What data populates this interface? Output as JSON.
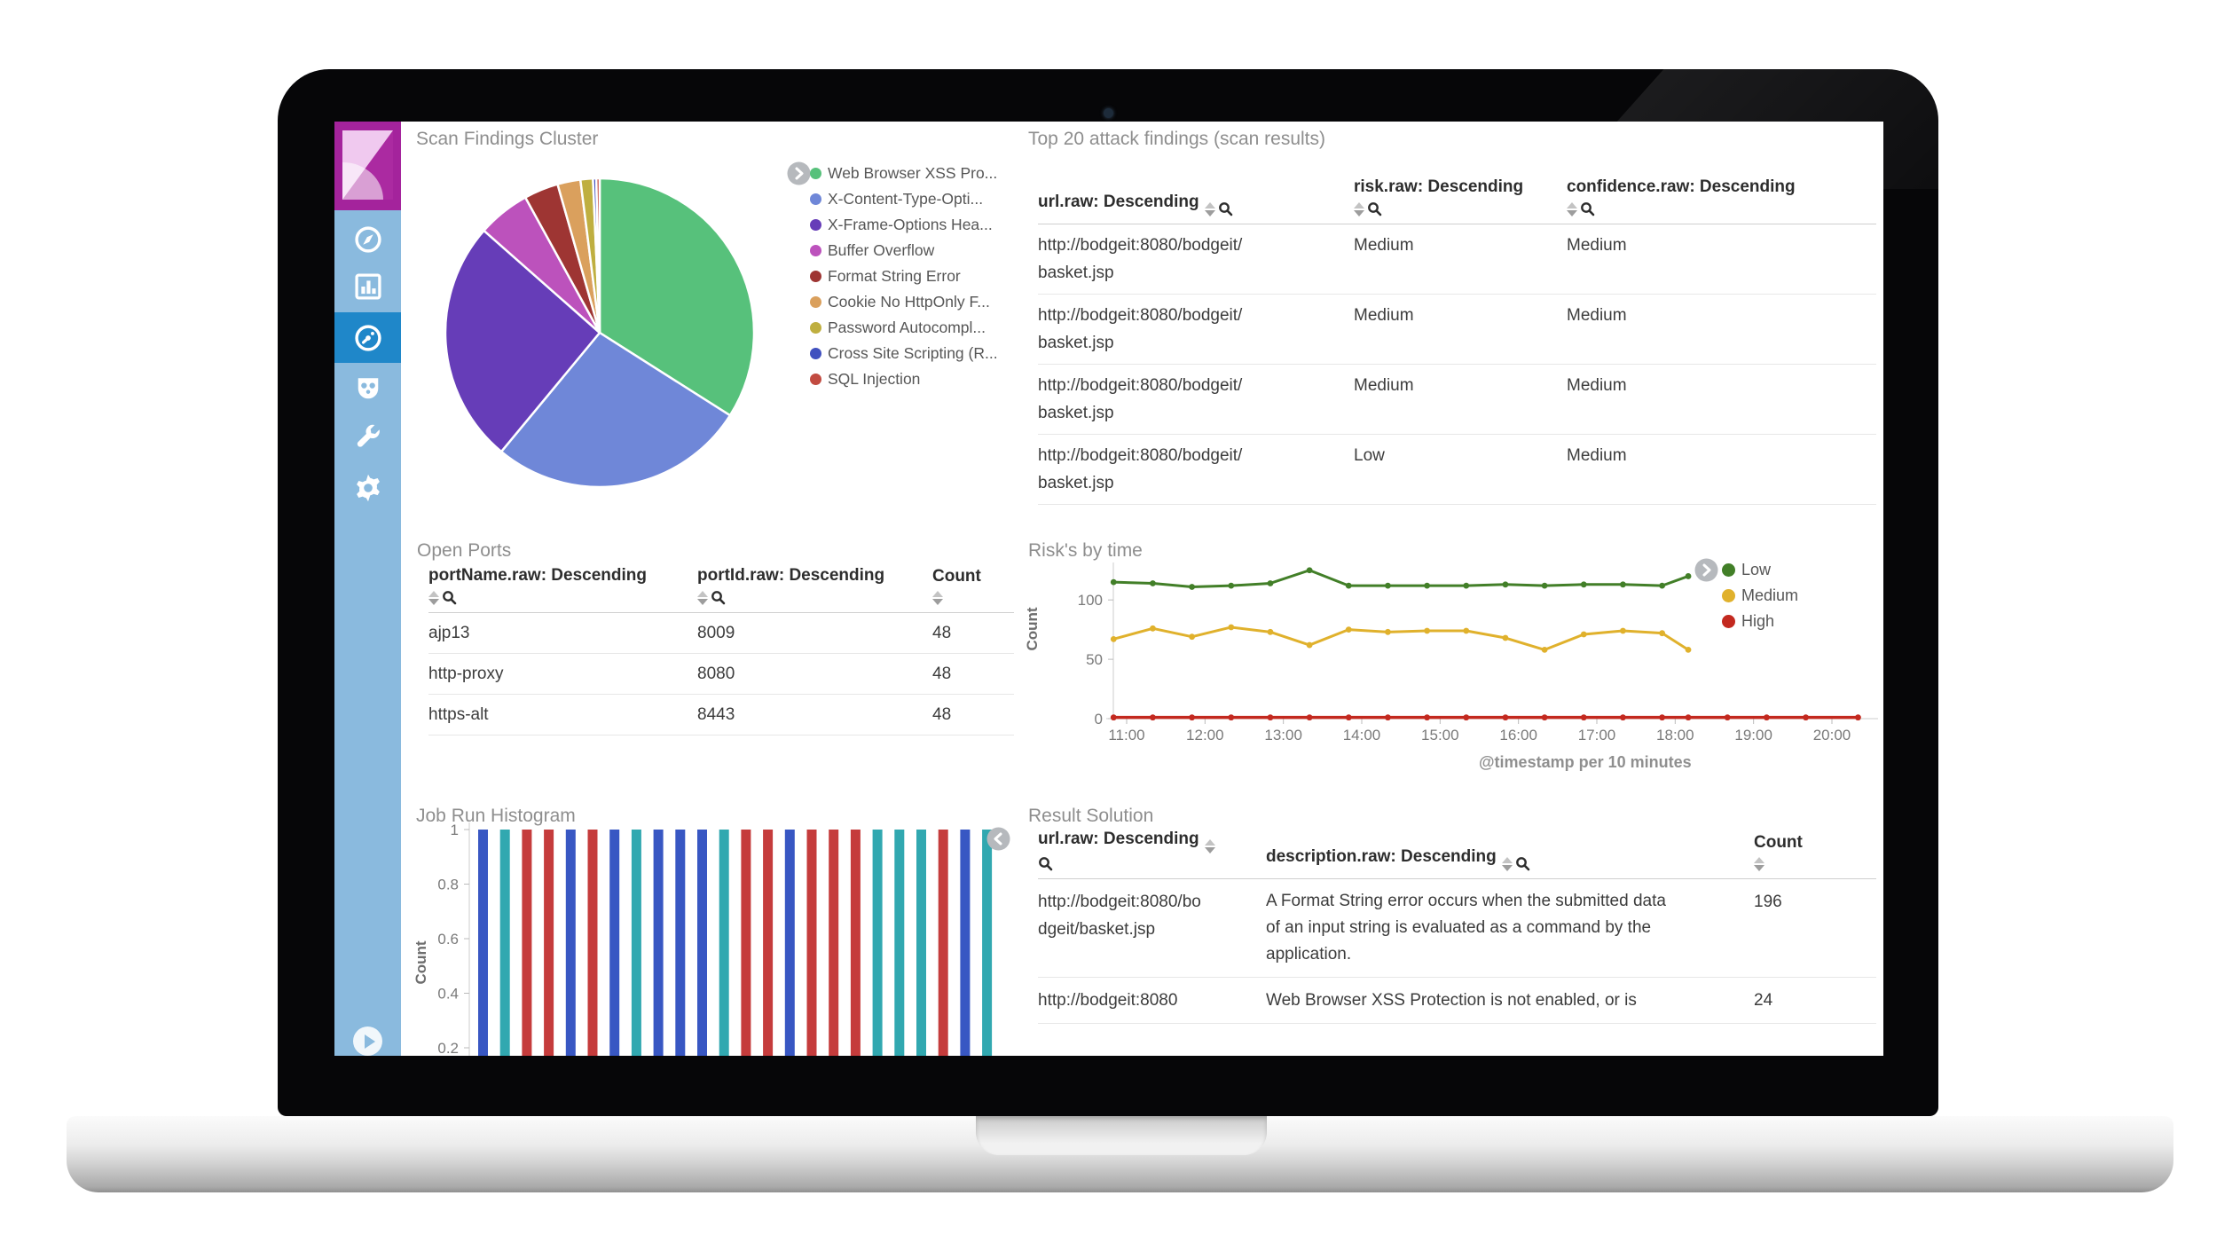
{
  "device": {
    "type": "laptop-mockup"
  },
  "sidebar": {
    "logo": {
      "name": "kibana-logo"
    },
    "items": [
      {
        "id": "discover",
        "icon": "compass"
      },
      {
        "id": "visualize",
        "icon": "bar-chart"
      },
      {
        "id": "dashboard",
        "icon": "gauge",
        "active": true
      },
      {
        "id": "security",
        "icon": "mask"
      },
      {
        "id": "tools",
        "icon": "wrench"
      },
      {
        "id": "settings",
        "icon": "gear"
      }
    ]
  },
  "panels": {
    "scan_findings": {
      "title": "Scan Findings Cluster"
    },
    "top20": {
      "title": "Top 20 attack findings (scan results)",
      "columns": [
        {
          "label": "url.raw: Descending",
          "sort": true,
          "search": true,
          "layout": "inline"
        },
        {
          "label": "risk.raw: Descending",
          "sort": true,
          "search": true,
          "layout": "below"
        },
        {
          "label": "confidence.raw: Descending",
          "sort": true,
          "search": true,
          "layout": "below"
        }
      ],
      "rows": [
        [
          "http://bodgeit:8080/bodgeit/basket.jsp",
          "Medium",
          "Medium"
        ],
        [
          "http://bodgeit:8080/bodgeit/basket.jsp",
          "Medium",
          "Medium"
        ],
        [
          "http://bodgeit:8080/bodgeit/basket.jsp",
          "Medium",
          "Medium"
        ],
        [
          "http://bodgeit:8080/bodgeit/basket.jsp",
          "Low",
          "Medium"
        ]
      ]
    },
    "open_ports": {
      "title": "Open Ports",
      "columns": [
        {
          "label": "portName.raw: Descending",
          "sort": true,
          "search": true,
          "layout": "below"
        },
        {
          "label": "portId.raw: Descending",
          "sort": true,
          "search": true,
          "layout": "below"
        },
        {
          "label": "Count",
          "sort": true,
          "search": false,
          "layout": "below"
        }
      ],
      "rows": [
        [
          "ajp13",
          "8009",
          "48"
        ],
        [
          "http-proxy",
          "8080",
          "48"
        ],
        [
          "https-alt",
          "8443",
          "48"
        ]
      ]
    },
    "risk": {
      "title": "Risk's by time",
      "ylabel": "Count",
      "xlabel": "@timestamp per 10 minutes",
      "legend": [
        {
          "label": "Low",
          "color": "#427f28"
        },
        {
          "label": "Medium",
          "color": "#e0b12c"
        },
        {
          "label": "High",
          "color": "#c3291f"
        }
      ]
    },
    "histogram": {
      "title": "Job Run Histogram",
      "ylabel": "Count"
    },
    "result": {
      "title": "Result Solution",
      "columns": [
        {
          "label": "url.raw: Descending",
          "sort": true,
          "search": true,
          "layout": "split"
        },
        {
          "label": "description.raw: Descending",
          "sort": true,
          "search": true,
          "layout": "inline"
        },
        {
          "label": "Count",
          "sort": true,
          "search": false,
          "layout": "below"
        }
      ],
      "rows": [
        [
          "http://bodgeit:8080/bodgeit/basket.jsp",
          "A Format String error occurs when the submitted data of an input string is evaluated as a command by the application.",
          "196"
        ],
        [
          "http://bodgeit:8080",
          "Web Browser XSS Protection is not enabled, or is",
          "24"
        ]
      ]
    }
  },
  "chart_data": [
    {
      "type": "pie",
      "title": "Scan Findings Cluster",
      "labels": [
        "Web Browser XSS Pro...",
        "X-Content-Type-Opti...",
        "X-Frame-Options Hea...",
        "Buffer Overflow",
        "Format String Error",
        "Cookie No HttpOnly F...",
        "Password Autocompl...",
        "Cross Site Scripting (R...",
        "SQL Injection"
      ],
      "values_pct": [
        34,
        27,
        25.5,
        5.5,
        3.6,
        2.4,
        1.3,
        0.35,
        0.35
      ],
      "colors": [
        "#57c17b",
        "#6f87d8",
        "#663db8",
        "#bc52bc",
        "#9e3533",
        "#daa05d",
        "#bfaf40",
        "#4050bf",
        "#c24b41"
      ],
      "legend_position": "right"
    },
    {
      "type": "line",
      "title": "Risk's by time",
      "xlabel": "@timestamp per 10 minutes",
      "ylabel": "Count",
      "ylim": [
        0,
        130
      ],
      "yticks": [
        0,
        50,
        100
      ],
      "xticks": [
        "11:00",
        "12:00",
        "13:00",
        "14:00",
        "15:00",
        "16:00",
        "17:00",
        "18:00",
        "19:00",
        "20:00"
      ],
      "series": [
        {
          "name": "Low",
          "color": "#427f28",
          "x": [
            "10:50",
            "11:20",
            "11:50",
            "12:20",
            "12:50",
            "13:20",
            "13:50",
            "14:20",
            "14:50",
            "15:20",
            "15:50",
            "16:20",
            "16:50",
            "17:20",
            "17:50",
            "18:10"
          ],
          "y": [
            115,
            114,
            111,
            112,
            114,
            125,
            112,
            112,
            112,
            112,
            113,
            112,
            113,
            113,
            112,
            120
          ]
        },
        {
          "name": "Medium",
          "color": "#e0b12c",
          "x": [
            "10:50",
            "11:20",
            "11:50",
            "12:20",
            "12:50",
            "13:20",
            "13:50",
            "14:20",
            "14:50",
            "15:20",
            "15:50",
            "16:20",
            "16:50",
            "17:20",
            "17:50",
            "18:10"
          ],
          "y": [
            67,
            76,
            69,
            77,
            73,
            62,
            75,
            73,
            74,
            74,
            68,
            58,
            71,
            74,
            72,
            58
          ]
        },
        {
          "name": "High",
          "color": "#c3291f",
          "x": [
            "10:50",
            "11:20",
            "11:50",
            "12:20",
            "12:50",
            "13:20",
            "13:50",
            "14:20",
            "14:50",
            "15:20",
            "15:50",
            "16:20",
            "16:50",
            "17:20",
            "17:50",
            "18:10",
            "18:40",
            "19:10",
            "19:40",
            "20:20"
          ],
          "y": [
            1,
            1,
            1,
            1,
            1,
            1,
            1,
            1,
            1,
            1,
            1,
            1,
            1,
            1,
            1,
            1,
            1,
            1,
            1,
            1
          ]
        }
      ],
      "legend_position": "right"
    },
    {
      "type": "bar",
      "title": "Job Run Histogram",
      "ylabel": "Count",
      "yticks": [
        1,
        0.8,
        0.6,
        0.4,
        0.2
      ],
      "values": [
        1,
        1,
        1,
        1,
        1,
        1,
        1,
        1,
        1,
        1,
        1,
        1,
        1,
        1,
        1,
        1,
        1,
        1,
        1,
        1,
        1,
        1,
        1,
        1
      ],
      "bar_colors": [
        "#3857c3",
        "#31a8b0",
        "#c53c3c",
        "#c53c3c",
        "#3857c3",
        "#c53c3c",
        "#3857c3",
        "#31a8b0",
        "#3857c3",
        "#3857c3",
        "#3857c3",
        "#31a8b0",
        "#c53c3c",
        "#c53c3c",
        "#3857c3",
        "#c53c3c",
        "#c53c3c",
        "#c53c3c",
        "#31a8b0",
        "#31a8b0",
        "#31a8b0",
        "#c53c3c",
        "#3857c3",
        "#31a8b0"
      ]
    }
  ]
}
